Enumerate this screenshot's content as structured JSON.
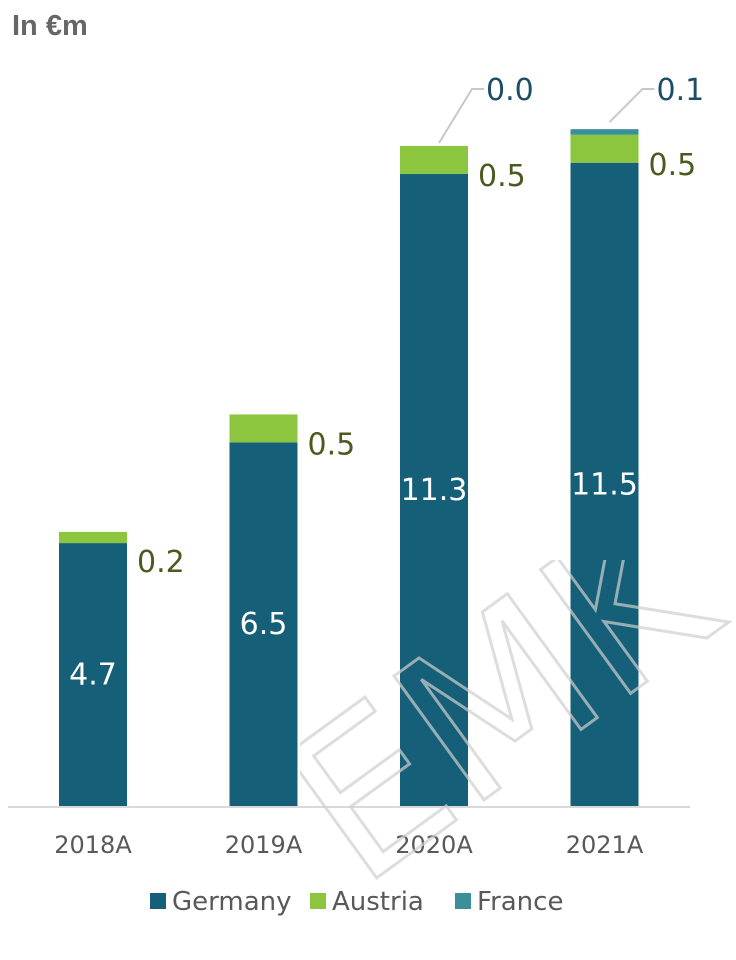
{
  "unit_label": "In €m",
  "watermark_text": "EMK",
  "chart_data": {
    "type": "bar",
    "stacked": true,
    "categories": [
      "2018A",
      "2019A",
      "2020A",
      "2021A"
    ],
    "series": [
      {
        "name": "Germany",
        "color": "#165f78",
        "values": [
          4.7,
          6.5,
          11.3,
          11.5
        ],
        "labels": [
          "4.7",
          "6.5",
          "11.3",
          "11.5"
        ]
      },
      {
        "name": "Austria",
        "color": "#8cc63f",
        "values": [
          0.2,
          0.5,
          0.5,
          0.5
        ],
        "labels": [
          "0.2",
          "0.5",
          "0.5",
          "0.5"
        ]
      },
      {
        "name": "France",
        "color": "#3a8f99",
        "values": [
          0.0,
          0.0,
          0.0,
          0.1
        ],
        "labels": [
          null,
          null,
          "0.0",
          "0.1"
        ]
      }
    ],
    "ylim": [
      0,
      12
    ],
    "grid": false,
    "legend_position": "bottom",
    "label_colors": {
      "inside": "#ffffff",
      "outside": "#4b5a1e",
      "leader": "#1b4f66"
    }
  }
}
